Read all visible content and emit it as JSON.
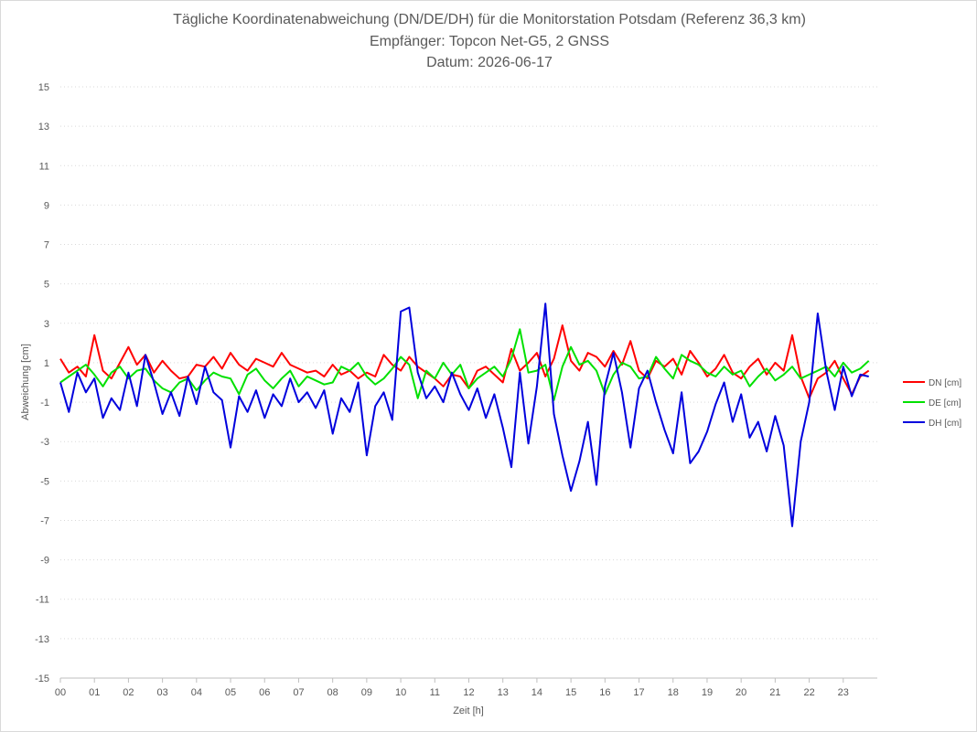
{
  "chart_data": {
    "type": "line",
    "title_lines": [
      "Tägliche Koordinatenabweichung (DN/DE/DH) für die Monitorstation Potsdam (Referenz 36,3 km)",
      "Empfänger: Topcon Net-G5, 2 GNSS",
      "Datum: 2026-06-17"
    ],
    "xlabel": "Zeit [h]",
    "ylabel": "Abweichung [cm]",
    "xlim": [
      0,
      24
    ],
    "ylim": [
      -15,
      15
    ],
    "x_tick_labels": [
      "00",
      "01",
      "02",
      "03",
      "04",
      "05",
      "06",
      "07",
      "08",
      "09",
      "10",
      "11",
      "12",
      "13",
      "14",
      "15",
      "16",
      "17",
      "18",
      "19",
      "20",
      "21",
      "22",
      "23"
    ],
    "y_tick_labels": [
      "15",
      "13",
      "11",
      "9",
      "7",
      "5",
      "3",
      "1",
      "-1",
      "-3",
      "-5",
      "-7",
      "-9",
      "-11",
      "-13",
      "-15"
    ],
    "grid": "horizontal-dotted",
    "legend_position": "right",
    "series": [
      {
        "name": "DN [cm]",
        "color": "#ff0000",
        "x": [
          0,
          0.25,
          0.5,
          0.75,
          1,
          1.25,
          1.5,
          1.75,
          2,
          2.25,
          2.5,
          2.75,
          3,
          3.25,
          3.5,
          3.75,
          4,
          4.25,
          4.5,
          4.75,
          5,
          5.25,
          5.5,
          5.75,
          6,
          6.25,
          6.5,
          6.75,
          7,
          7.25,
          7.5,
          7.75,
          8,
          8.25,
          8.5,
          8.75,
          9,
          9.25,
          9.5,
          9.75,
          10,
          10.25,
          10.5,
          10.75,
          11,
          11.25,
          11.5,
          11.75,
          12,
          12.25,
          12.5,
          12.75,
          13,
          13.25,
          13.5,
          13.75,
          14,
          14.25,
          14.5,
          14.75,
          15,
          15.25,
          15.5,
          15.75,
          16,
          16.25,
          16.5,
          16.75,
          17,
          17.25,
          17.5,
          17.75,
          18,
          18.25,
          18.5,
          18.75,
          19,
          19.25,
          19.5,
          19.75,
          20,
          20.25,
          20.5,
          20.75,
          21,
          21.25,
          21.5,
          21.75,
          22,
          22.25,
          22.5,
          22.75,
          23,
          23.25,
          23.5,
          23.75
        ],
        "y": [
          1.2,
          0.5,
          0.8,
          0.3,
          2.4,
          0.6,
          0.2,
          1.0,
          1.8,
          0.9,
          1.4,
          0.5,
          1.1,
          0.6,
          0.2,
          0.3,
          0.9,
          0.8,
          1.3,
          0.7,
          1.5,
          0.9,
          0.6,
          1.2,
          1.0,
          0.8,
          1.5,
          0.9,
          0.7,
          0.5,
          0.6,
          0.3,
          0.9,
          0.4,
          0.6,
          0.2,
          0.5,
          0.3,
          1.4,
          0.9,
          0.6,
          1.3,
          0.8,
          0.5,
          0.2,
          -0.2,
          0.4,
          0.3,
          -0.3,
          0.6,
          0.8,
          0.4,
          0.0,
          1.7,
          0.6,
          1.0,
          1.5,
          0.3,
          1.2,
          2.9,
          1.1,
          0.6,
          1.5,
          1.3,
          0.8,
          1.6,
          0.9,
          2.1,
          0.6,
          0.2,
          1.1,
          0.8,
          1.2,
          0.4,
          1.6,
          1.0,
          0.3,
          0.7,
          1.4,
          0.5,
          0.2,
          0.8,
          1.2,
          0.4,
          1.0,
          0.6,
          2.4,
          0.3,
          -0.8,
          0.2,
          0.5,
          1.1,
          0.2,
          -0.6,
          0.3,
          0.6
        ]
      },
      {
        "name": "DE [cm]",
        "color": "#00e000",
        "x": [
          0,
          0.25,
          0.5,
          0.75,
          1,
          1.25,
          1.5,
          1.75,
          2,
          2.25,
          2.5,
          2.75,
          3,
          3.25,
          3.5,
          3.75,
          4,
          4.25,
          4.5,
          4.75,
          5,
          5.25,
          5.5,
          5.75,
          6,
          6.25,
          6.5,
          6.75,
          7,
          7.25,
          7.5,
          7.75,
          8,
          8.25,
          8.5,
          8.75,
          9,
          9.25,
          9.5,
          9.75,
          10,
          10.25,
          10.5,
          10.75,
          11,
          11.25,
          11.5,
          11.75,
          12,
          12.25,
          12.5,
          12.75,
          13,
          13.25,
          13.5,
          13.75,
          14,
          14.25,
          14.5,
          14.75,
          15,
          15.25,
          15.5,
          15.75,
          16,
          16.25,
          16.5,
          16.75,
          17,
          17.25,
          17.5,
          17.75,
          18,
          18.25,
          18.5,
          18.75,
          19,
          19.25,
          19.5,
          19.75,
          20,
          20.25,
          20.5,
          20.75,
          21,
          21.25,
          21.5,
          21.75,
          22,
          22.25,
          22.5,
          22.75,
          23,
          23.25,
          23.5,
          23.75
        ],
        "y": [
          0.0,
          0.3,
          0.6,
          0.9,
          0.4,
          -0.2,
          0.5,
          0.8,
          0.2,
          0.6,
          0.7,
          0.1,
          -0.3,
          -0.5,
          0.0,
          0.2,
          -0.4,
          0.1,
          0.5,
          0.3,
          0.2,
          -0.6,
          0.4,
          0.7,
          0.1,
          -0.3,
          0.2,
          0.6,
          -0.2,
          0.3,
          0.1,
          -0.1,
          0.0,
          0.8,
          0.6,
          1.0,
          0.3,
          -0.1,
          0.2,
          0.7,
          1.3,
          0.9,
          -0.8,
          0.6,
          0.2,
          1.0,
          0.4,
          0.9,
          -0.3,
          0.2,
          0.5,
          0.8,
          0.3,
          1.2,
          2.7,
          0.5,
          0.6,
          0.9,
          -0.9,
          0.8,
          1.8,
          0.9,
          1.1,
          0.6,
          -0.6,
          0.4,
          1.0,
          0.8,
          0.2,
          0.3,
          1.3,
          0.7,
          0.2,
          1.4,
          1.1,
          0.9,
          0.5,
          0.3,
          0.8,
          0.4,
          0.6,
          -0.2,
          0.3,
          0.7,
          0.1,
          0.4,
          0.8,
          0.2,
          0.4,
          0.6,
          0.8,
          0.3,
          1.0,
          0.5,
          0.7,
          1.1
        ]
      },
      {
        "name": "DH [cm]",
        "color": "#0000dd",
        "x": [
          0,
          0.25,
          0.5,
          0.75,
          1,
          1.25,
          1.5,
          1.75,
          2,
          2.25,
          2.5,
          2.75,
          3,
          3.25,
          3.5,
          3.75,
          4,
          4.25,
          4.5,
          4.75,
          5,
          5.25,
          5.5,
          5.75,
          6,
          6.25,
          6.5,
          6.75,
          7,
          7.25,
          7.5,
          7.75,
          8,
          8.25,
          8.5,
          8.75,
          9,
          9.25,
          9.5,
          9.75,
          10,
          10.25,
          10.5,
          10.75,
          11,
          11.25,
          11.5,
          11.75,
          12,
          12.25,
          12.5,
          12.75,
          13,
          13.25,
          13.5,
          13.75,
          14,
          14.25,
          14.5,
          14.75,
          15,
          15.25,
          15.5,
          15.75,
          16,
          16.25,
          16.5,
          16.75,
          17,
          17.25,
          17.5,
          17.75,
          18,
          18.25,
          18.5,
          18.75,
          19,
          19.25,
          19.5,
          19.75,
          20,
          20.25,
          20.5,
          20.75,
          21,
          21.25,
          21.5,
          21.75,
          22,
          22.25,
          22.5,
          22.75,
          23,
          23.25,
          23.5,
          23.75
        ],
        "y": [
          0.0,
          -1.5,
          0.5,
          -0.5,
          0.2,
          -1.8,
          -0.8,
          -1.4,
          0.5,
          -1.2,
          1.4,
          0.0,
          -1.6,
          -0.5,
          -1.7,
          0.3,
          -1.1,
          0.8,
          -0.5,
          -0.9,
          -3.3,
          -0.7,
          -1.5,
          -0.4,
          -1.8,
          -0.6,
          -1.2,
          0.2,
          -1.0,
          -0.5,
          -1.3,
          -0.4,
          -2.6,
          -0.8,
          -1.5,
          0.0,
          -3.7,
          -1.2,
          -0.5,
          -1.9,
          3.6,
          3.8,
          0.5,
          -0.8,
          -0.2,
          -1.0,
          0.5,
          -0.6,
          -1.4,
          -0.3,
          -1.8,
          -0.6,
          -2.3,
          -4.3,
          0.5,
          -3.1,
          -0.2,
          4.0,
          -1.6,
          -3.7,
          -5.5,
          -4.0,
          -2.0,
          -5.2,
          -0.2,
          1.5,
          -0.5,
          -3.3,
          -0.3,
          0.6,
          -1.0,
          -2.4,
          -3.6,
          -0.5,
          -4.1,
          -3.5,
          -2.5,
          -1.1,
          0.0,
          -2.0,
          -0.6,
          -2.8,
          -2.0,
          -3.5,
          -1.7,
          -3.2,
          -7.3,
          -3.0,
          -1.0,
          3.5,
          0.6,
          -1.4,
          0.8,
          -0.7,
          0.4,
          0.3
        ]
      }
    ]
  }
}
